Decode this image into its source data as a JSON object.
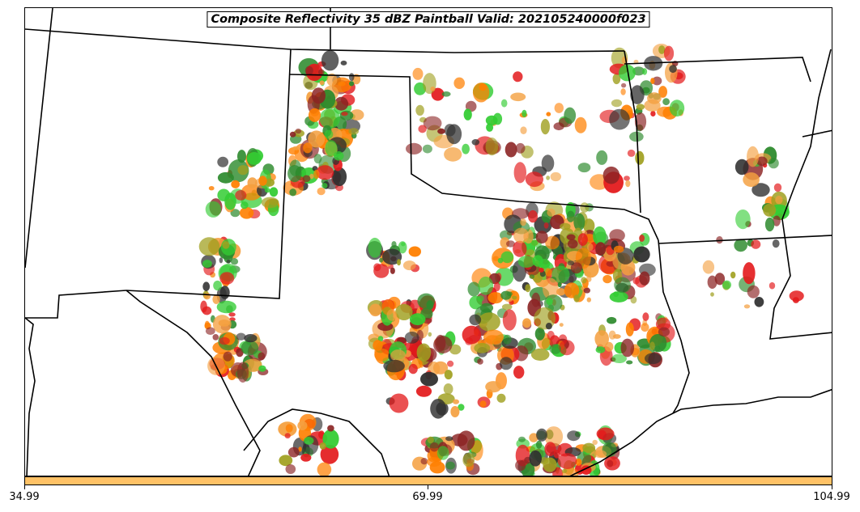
{
  "title": "Composite Reflectivity 35 dBZ Paintball Valid: 202105240000f023",
  "colorbar": {
    "color": "#ffc266",
    "tick_labels": [
      "34.99",
      "69.99",
      "104.99"
    ]
  },
  "member_colors": [
    "#e31a1c",
    "#ff7f00",
    "#f4a040",
    "#33cc33",
    "#a0a020",
    "#8b2323",
    "#2f2f2f",
    "#2e8b2e"
  ],
  "icons": []
}
